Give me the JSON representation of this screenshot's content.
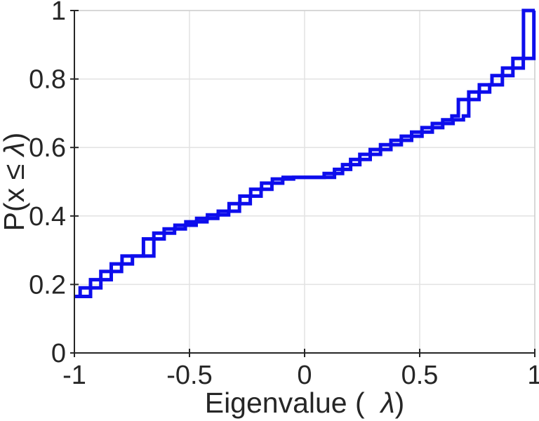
{
  "chart_data": {
    "type": "line",
    "subtype": "ecdf-step",
    "title": "",
    "xlabel": "Eigenvalue (  λ)",
    "ylabel": "P(x ≤ λ)",
    "xlabel_parts": {
      "prefix": "Eigenvalue (  ",
      "symbol": "λ",
      "suffix": ")"
    },
    "ylabel_parts": {
      "prefix": "P(x ≤ ",
      "symbol": "λ",
      "suffix": ")"
    },
    "xlim": [
      -1,
      1
    ],
    "ylim": [
      0,
      1
    ],
    "xticks": [
      -1,
      -0.5,
      0,
      0.5,
      1
    ],
    "xtick_labels": [
      "-1",
      "-0.5",
      "0",
      "0.5",
      "1"
    ],
    "yticks": [
      0,
      0.2,
      0.4,
      0.6,
      0.8,
      1
    ],
    "ytick_labels": [
      "0",
      "0.2",
      "0.4",
      "0.6",
      "0.8",
      "1"
    ],
    "grid": true,
    "legend": "none",
    "line_color": "#0d0dec",
    "axis_color": "#262626",
    "grid_color": "#e2e2e2",
    "series": [
      {
        "name": "ecdf-series-1",
        "start": [
          -1,
          0.165
        ],
        "steps": [
          [
            -0.975,
            0.19
          ],
          [
            -0.93,
            0.214
          ],
          [
            -0.885,
            0.238
          ],
          [
            -0.84,
            0.26
          ],
          [
            -0.793,
            0.283
          ],
          [
            -0.7,
            0.333
          ],
          [
            -0.655,
            0.35
          ],
          [
            -0.61,
            0.362
          ],
          [
            -0.563,
            0.373
          ],
          [
            -0.516,
            0.383
          ],
          [
            -0.469,
            0.393
          ],
          [
            -0.422,
            0.403
          ],
          [
            -0.375,
            0.414
          ],
          [
            -0.328,
            0.436
          ],
          [
            -0.281,
            0.458
          ],
          [
            -0.234,
            0.478
          ],
          [
            -0.187,
            0.496
          ],
          [
            -0.14,
            0.508
          ],
          [
            -0.093,
            0.513
          ],
          [
            0.085,
            0.524
          ],
          [
            0.13,
            0.536
          ],
          [
            0.165,
            0.55
          ],
          [
            0.2,
            0.565
          ],
          [
            0.24,
            0.58
          ],
          [
            0.285,
            0.594
          ],
          [
            0.33,
            0.608
          ],
          [
            0.375,
            0.621
          ],
          [
            0.42,
            0.633
          ],
          [
            0.465,
            0.645
          ],
          [
            0.51,
            0.658
          ],
          [
            0.555,
            0.67
          ],
          [
            0.6,
            0.681
          ],
          [
            0.64,
            0.692
          ],
          [
            0.668,
            0.74
          ],
          [
            0.713,
            0.762
          ],
          [
            0.759,
            0.783
          ],
          [
            0.814,
            0.81
          ],
          [
            0.86,
            0.832
          ],
          [
            0.905,
            0.86
          ],
          [
            0.951,
            1.0
          ]
        ]
      },
      {
        "name": "ecdf-series-2",
        "start": [
          -1,
          0.165
        ],
        "steps": [
          [
            -0.93,
            0.19
          ],
          [
            -0.885,
            0.214
          ],
          [
            -0.84,
            0.238
          ],
          [
            -0.795,
            0.26
          ],
          [
            -0.748,
            0.283
          ],
          [
            -0.655,
            0.333
          ],
          [
            -0.61,
            0.35
          ],
          [
            -0.565,
            0.362
          ],
          [
            -0.518,
            0.373
          ],
          [
            -0.471,
            0.383
          ],
          [
            -0.424,
            0.393
          ],
          [
            -0.377,
            0.403
          ],
          [
            -0.33,
            0.414
          ],
          [
            -0.283,
            0.436
          ],
          [
            -0.236,
            0.458
          ],
          [
            -0.189,
            0.478
          ],
          [
            -0.142,
            0.496
          ],
          [
            -0.095,
            0.508
          ],
          [
            -0.048,
            0.513
          ],
          [
            0.13,
            0.524
          ],
          [
            0.165,
            0.536
          ],
          [
            0.2,
            0.55
          ],
          [
            0.24,
            0.565
          ],
          [
            0.285,
            0.58
          ],
          [
            0.33,
            0.594
          ],
          [
            0.375,
            0.608
          ],
          [
            0.42,
            0.621
          ],
          [
            0.465,
            0.633
          ],
          [
            0.51,
            0.645
          ],
          [
            0.555,
            0.658
          ],
          [
            0.6,
            0.67
          ],
          [
            0.645,
            0.681
          ],
          [
            0.69,
            0.692
          ],
          [
            0.713,
            0.74
          ],
          [
            0.758,
            0.762
          ],
          [
            0.804,
            0.783
          ],
          [
            0.859,
            0.81
          ],
          [
            0.905,
            0.832
          ],
          [
            0.95,
            0.86
          ],
          [
            0.996,
            1.0
          ]
        ]
      }
    ]
  }
}
